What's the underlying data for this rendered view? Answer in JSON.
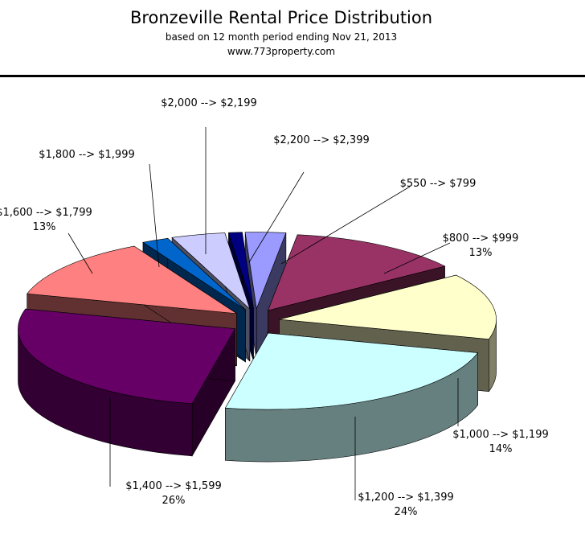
{
  "header": {
    "title": "Bronzeville Rental Price Distribution",
    "subtitle": "based on 12 month period ending Nov 21, 2013",
    "website": "www.773property.com"
  },
  "chart_data": {
    "type": "pie",
    "style": "3d-exploded",
    "title": "Bronzeville Rental Price Distribution",
    "slices": [
      {
        "label": "$550 --> $799",
        "pct_label": "",
        "value": 3,
        "color": "#9A9AFF"
      },
      {
        "label": "$800 --> $999",
        "pct_label": "13%",
        "value": 13,
        "color": "#993366"
      },
      {
        "label": "$1,000 --> $1,199",
        "pct_label": "14%",
        "value": 14,
        "color": "#FFFFCC"
      },
      {
        "label": "$1,200 --> $1,399",
        "pct_label": "24%",
        "value": 24,
        "color": "#CCFFFF"
      },
      {
        "label": "$1,400 --> $1,599",
        "pct_label": "26%",
        "value": 26,
        "color": "#660066"
      },
      {
        "label": "$1,600 --> $1,799",
        "pct_label": "13%",
        "value": 13,
        "color": "#FF8080"
      },
      {
        "label": "$1,800 --> $1,999",
        "pct_label": "",
        "value": 2,
        "color": "#0066CC"
      },
      {
        "label": "$2,000 --> $2,199",
        "pct_label": "",
        "value": 4,
        "color": "#CCCCFF"
      },
      {
        "label": "$2,200 --> $2,399",
        "pct_label": "",
        "value": 1,
        "color": "#000080"
      }
    ]
  }
}
